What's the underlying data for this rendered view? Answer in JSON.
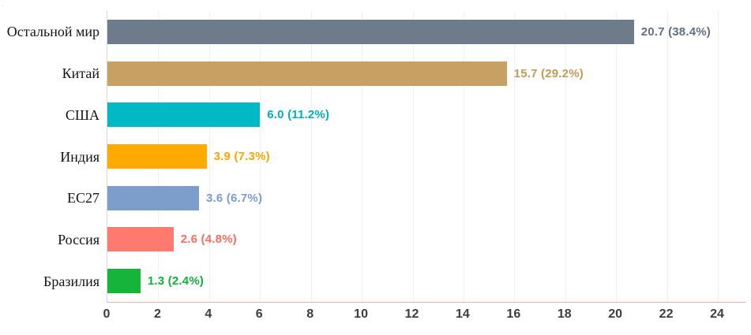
{
  "chart_data": {
    "type": "bar",
    "orientation": "horizontal",
    "title": "",
    "xlabel": "",
    "ylabel": "",
    "legend": "none",
    "grid": "faint vertical gridlines at each x tick",
    "xlim": [
      0,
      24
    ],
    "x_ticks": [
      0,
      2,
      4,
      6,
      8,
      10,
      12,
      14,
      16,
      18,
      20,
      22,
      24
    ],
    "categories": [
      "Остальной мир",
      "Китай",
      "США",
      "Индия",
      "ЕС27",
      "Россия",
      "Бразилия"
    ],
    "values": [
      20.7,
      15.7,
      6.0,
      3.9,
      3.6,
      2.6,
      1.3
    ],
    "percentages": [
      38.4,
      29.2,
      11.2,
      7.3,
      6.7,
      4.8,
      2.4
    ],
    "value_labels": [
      "20.7 (38.4%)",
      "15.7 (29.2%)",
      "6.0 (11.2%)",
      "3.9 (7.3%)",
      "3.6 (6.7%)",
      "2.6 (4.8%)",
      "1.3 (2.4%)"
    ],
    "bar_colors": [
      "#6e7b8a",
      "#c7a063",
      "#00b9c5",
      "#feaa01",
      "#7d9dcb",
      "#fe7a6e",
      "#17b43b"
    ],
    "label_colors": [
      "#5f7183",
      "#c39a56",
      "#00aebd",
      "#f9a602",
      "#7b9cd1",
      "#fb6d60",
      "#10b13a"
    ],
    "axis_colors": {
      "left_axis": "#d6d6d6",
      "bottom_axis": "#eab3aa",
      "gridline": "#f0f0f0",
      "tick_text": "#3d3d3d"
    },
    "corner_artifact_glyph": "·"
  }
}
